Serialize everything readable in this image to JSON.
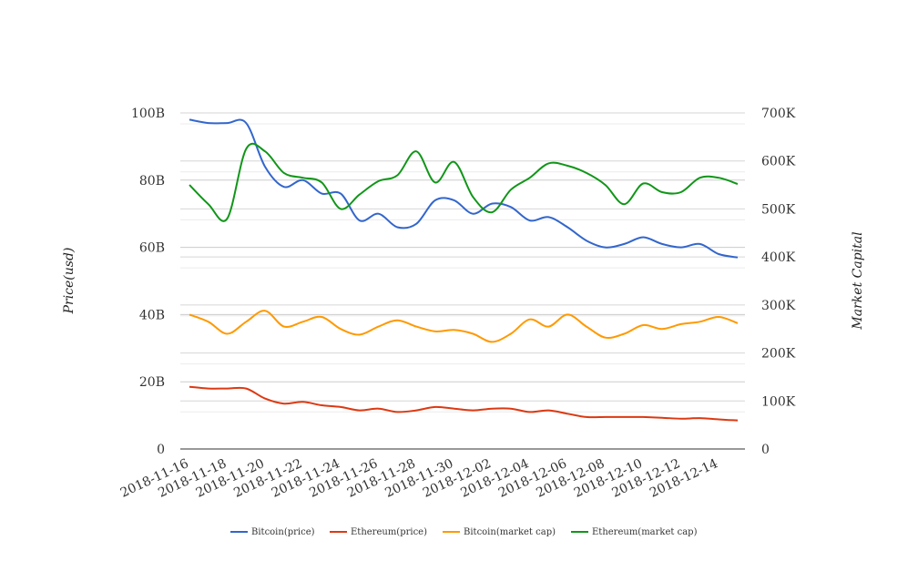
{
  "chart_data": {
    "type": "line",
    "title": "",
    "xlabel": "",
    "ylabel": "Price(usd)",
    "y2label": "Market Capital",
    "x_tick_labels": [
      "2018-11-16",
      "2018-11-18",
      "2018-11-20",
      "2018-11-22",
      "2018-11-24",
      "2018-11-26",
      "2018-11-28",
      "2018-11-30",
      "2018-12-02",
      "2018-12-04",
      "2018-12-06",
      "2018-12-08",
      "2018-12-10",
      "2018-12-12",
      "2018-12-14"
    ],
    "x": [
      "2018-11-16",
      "2018-11-17",
      "2018-11-18",
      "2018-11-19",
      "2018-11-20",
      "2018-11-21",
      "2018-11-22",
      "2018-11-23",
      "2018-11-24",
      "2018-11-25",
      "2018-11-26",
      "2018-11-27",
      "2018-11-28",
      "2018-11-29",
      "2018-11-30",
      "2018-12-01",
      "2018-12-02",
      "2018-12-03",
      "2018-12-04",
      "2018-12-05",
      "2018-12-06",
      "2018-12-07",
      "2018-12-08",
      "2018-12-09",
      "2018-12-10",
      "2018-12-11",
      "2018-12-12",
      "2018-12-13",
      "2018-12-14",
      "2018-12-15"
    ],
    "ylim": [
      0,
      100
    ],
    "y_ticks": [
      "0",
      "20B",
      "40B",
      "60B",
      "80B",
      "100B"
    ],
    "y2lim": [
      0,
      700
    ],
    "y2_ticks": [
      "0",
      "100K",
      "200K",
      "300K",
      "400K",
      "500K",
      "600K",
      "700K"
    ],
    "grid": true,
    "legend_position": "bottom",
    "series": [
      {
        "name": "Bitcoin(price)",
        "axis": "left",
        "color": "#3366cc",
        "values": [
          98,
          97,
          97,
          97,
          84,
          78,
          80,
          76,
          76,
          68,
          70,
          66,
          67,
          74,
          74,
          70,
          73,
          72,
          68,
          69,
          66,
          62,
          60,
          61,
          63,
          61,
          60,
          61,
          58,
          57
        ]
      },
      {
        "name": "Ethereum(price)",
        "axis": "left",
        "color": "#dc3912",
        "values": [
          18.5,
          18,
          18,
          18,
          15,
          13.5,
          14,
          13,
          12.5,
          11.5,
          12,
          11,
          11.5,
          12.5,
          12,
          11.5,
          12,
          12,
          11,
          11.5,
          10.5,
          9.5,
          9.5,
          9.5,
          9.5,
          9.3,
          9,
          9.2,
          8.8,
          8.5
        ]
      },
      {
        "name": "Bitcoin(market cap)",
        "axis": "right",
        "color": "#ff9900",
        "values": [
          280,
          265,
          240,
          265,
          288,
          255,
          265,
          275,
          250,
          238,
          255,
          268,
          255,
          245,
          248,
          240,
          223,
          240,
          270,
          255,
          280,
          255,
          232,
          240,
          258,
          250,
          260,
          265,
          275,
          262
        ]
      },
      {
        "name": "Ethereum(market cap)",
        "axis": "right",
        "color": "#109618",
        "values": [
          550,
          510,
          480,
          625,
          620,
          575,
          565,
          555,
          500,
          530,
          558,
          570,
          620,
          555,
          598,
          525,
          493,
          540,
          565,
          595,
          590,
          575,
          550,
          510,
          553,
          535,
          535,
          565,
          565,
          552
        ]
      }
    ]
  }
}
